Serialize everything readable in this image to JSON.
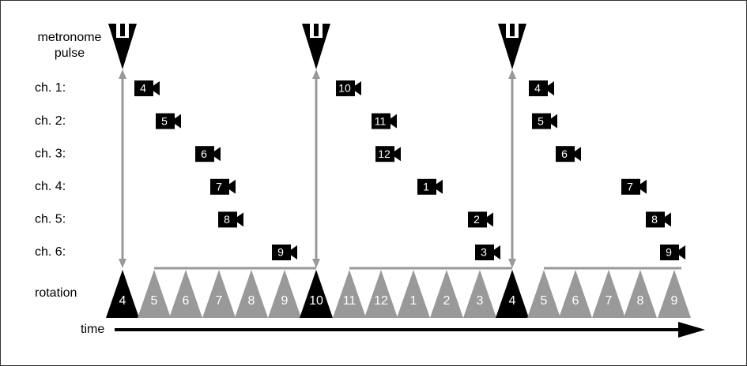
{
  "labels": {
    "metronome": [
      "metronome",
      "pulse"
    ],
    "rotation": "rotation",
    "time": "time"
  },
  "channels": [
    "ch. 1:",
    "ch. 2:",
    "ch. 3:",
    "ch. 4:",
    "ch. 5:",
    "ch. 6:"
  ],
  "groups": [
    {
      "rotation": [
        "4",
        "5",
        "6",
        "7",
        "8",
        "9"
      ],
      "cameras": [
        "4",
        "5",
        "6",
        "7",
        "8",
        "9"
      ]
    },
    {
      "rotation": [
        "10",
        "11",
        "12",
        "1",
        "2",
        "3"
      ],
      "cameras": [
        "10",
        "11",
        "12",
        "1",
        "2",
        "3"
      ]
    },
    {
      "rotation": [
        "4",
        "5",
        "6",
        "7",
        "8",
        "9"
      ],
      "cameras": [
        "4",
        "5",
        "6",
        "7",
        "8",
        "9"
      ]
    }
  ]
}
